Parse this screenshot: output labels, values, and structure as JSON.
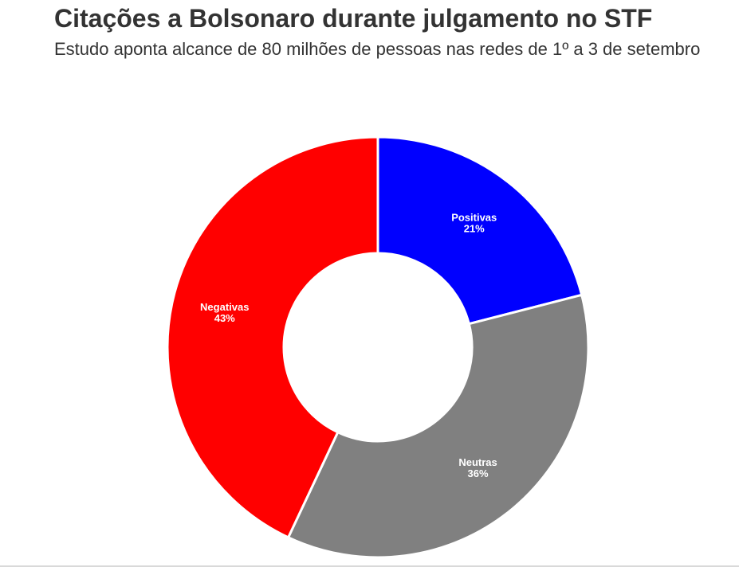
{
  "header": {
    "title": "Citações a Bolsonaro durante julgamento no STF",
    "subtitle": "Estudo aponta alcance de 80 milhões de pessoas nas redes de 1º a 3 de setembro"
  },
  "chart_data": {
    "type": "pie",
    "donut": true,
    "title": "Citações a Bolsonaro durante julgamento no STF",
    "subtitle": "Estudo aponta alcance de 80 milhões de pessoas nas redes de 1º a 3 de setembro",
    "unit": "%",
    "slices": [
      {
        "label": "Positivas",
        "value": 21,
        "value_label": "21%",
        "color": "#0000ff"
      },
      {
        "label": "Neutras",
        "value": 36,
        "value_label": "36%",
        "color": "#808080"
      },
      {
        "label": "Negativas",
        "value": 43,
        "value_label": "43%",
        "color": "#ff0000"
      }
    ]
  }
}
